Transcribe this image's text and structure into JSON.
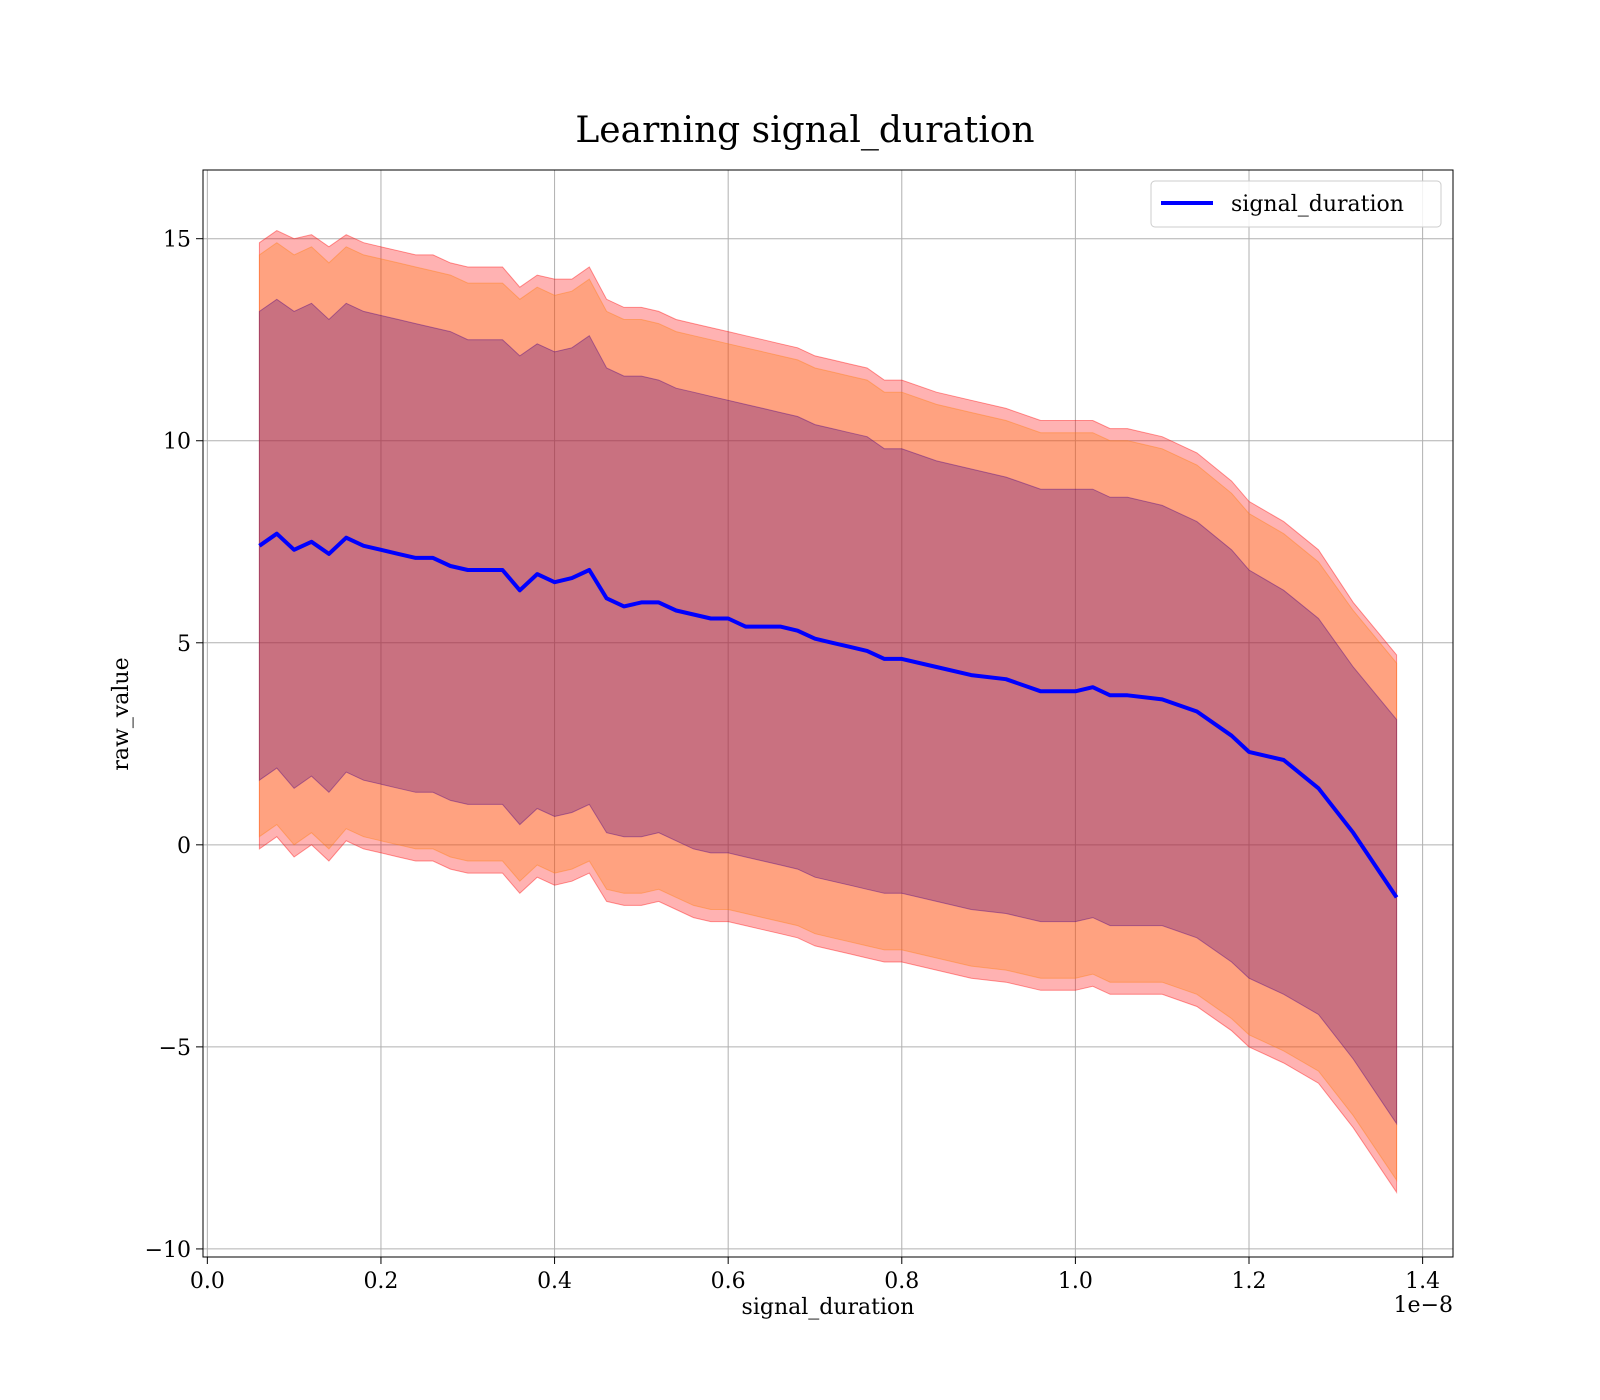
{
  "chart_data": {
    "type": "line",
    "title": "Learning signal_duration",
    "xlabel": "signal_duration",
    "ylabel": "raw_value",
    "x_offset_text": "1e−8",
    "xlim": [
      -0.005,
      1.435
    ],
    "ylim": [
      -10.2,
      16.7
    ],
    "xticks": [
      0.0,
      0.2,
      0.4,
      0.6,
      0.8,
      1.0,
      1.2,
      1.4
    ],
    "xtick_labels": [
      "0.0",
      "0.2",
      "0.4",
      "0.6",
      "0.8",
      "1.0",
      "1.2",
      "1.4"
    ],
    "yticks": [
      -10,
      -5,
      0,
      5,
      10,
      15
    ],
    "ytick_labels": [
      "−10",
      "−5",
      "0",
      "5",
      "10",
      "15"
    ],
    "grid": true,
    "legend": {
      "position": "top-right",
      "entries": [
        "signal_duration"
      ]
    },
    "colors": {
      "line": "#0000ff",
      "band_outer": "#ff0000",
      "band_middle": "#ff7f0e",
      "band_inner": "#4b0082"
    },
    "x": [
      0.06,
      0.08,
      0.1,
      0.12,
      0.14,
      0.16,
      0.18,
      0.2,
      0.22,
      0.24,
      0.26,
      0.28,
      0.3,
      0.32,
      0.34,
      0.36,
      0.38,
      0.4,
      0.42,
      0.44,
      0.46,
      0.48,
      0.5,
      0.52,
      0.54,
      0.56,
      0.58,
      0.6,
      0.62,
      0.64,
      0.66,
      0.68,
      0.7,
      0.72,
      0.74,
      0.76,
      0.78,
      0.8,
      0.84,
      0.88,
      0.92,
      0.96,
      1.0,
      1.02,
      1.04,
      1.06,
      1.1,
      1.14,
      1.18,
      1.2,
      1.24,
      1.28,
      1.32,
      1.37
    ],
    "series": [
      {
        "name": "signal_duration",
        "values": [
          7.4,
          7.7,
          7.3,
          7.5,
          7.2,
          7.6,
          7.4,
          7.3,
          7.2,
          7.1,
          7.1,
          6.9,
          6.8,
          6.8,
          6.8,
          6.3,
          6.7,
          6.5,
          6.6,
          6.8,
          6.1,
          5.9,
          6.0,
          6.0,
          5.8,
          5.7,
          5.6,
          5.6,
          5.4,
          5.4,
          5.4,
          5.3,
          5.1,
          5.0,
          4.9,
          4.8,
          4.6,
          4.6,
          4.4,
          4.2,
          4.1,
          3.8,
          3.8,
          3.9,
          3.7,
          3.7,
          3.6,
          3.3,
          2.7,
          2.3,
          2.1,
          1.4,
          0.3,
          -1.3
        ],
        "band_outer_upper": [
          14.9,
          15.2,
          15.0,
          15.1,
          14.8,
          15.1,
          14.9,
          14.8,
          14.7,
          14.6,
          14.6,
          14.4,
          14.3,
          14.3,
          14.3,
          13.8,
          14.1,
          14.0,
          14.0,
          14.3,
          13.5,
          13.3,
          13.3,
          13.2,
          13.0,
          12.9,
          12.8,
          12.7,
          12.6,
          12.5,
          12.4,
          12.3,
          12.1,
          12.0,
          11.9,
          11.8,
          11.5,
          11.5,
          11.2,
          11.0,
          10.8,
          10.5,
          10.5,
          10.5,
          10.3,
          10.3,
          10.1,
          9.7,
          9.0,
          8.5,
          8.0,
          7.3,
          6.0,
          4.7
        ],
        "band_outer_lower": [
          -0.1,
          0.2,
          -0.3,
          0.0,
          -0.4,
          0.1,
          -0.1,
          -0.2,
          -0.3,
          -0.4,
          -0.4,
          -0.6,
          -0.7,
          -0.7,
          -0.7,
          -1.2,
          -0.8,
          -1.0,
          -0.9,
          -0.7,
          -1.4,
          -1.5,
          -1.5,
          -1.4,
          -1.6,
          -1.8,
          -1.9,
          -1.9,
          -2.0,
          -2.1,
          -2.2,
          -2.3,
          -2.5,
          -2.6,
          -2.7,
          -2.8,
          -2.9,
          -2.9,
          -3.1,
          -3.3,
          -3.4,
          -3.6,
          -3.6,
          -3.5,
          -3.7,
          -3.7,
          -3.7,
          -4.0,
          -4.6,
          -5.0,
          -5.4,
          -5.9,
          -7.0,
          -8.6
        ],
        "band_middle_upper": [
          14.6,
          14.9,
          14.6,
          14.8,
          14.4,
          14.8,
          14.6,
          14.5,
          14.4,
          14.3,
          14.2,
          14.1,
          13.9,
          13.9,
          13.9,
          13.5,
          13.8,
          13.6,
          13.7,
          14.0,
          13.2,
          13.0,
          13.0,
          12.9,
          12.7,
          12.6,
          12.5,
          12.4,
          12.3,
          12.2,
          12.1,
          12.0,
          11.8,
          11.7,
          11.6,
          11.5,
          11.2,
          11.2,
          10.9,
          10.7,
          10.5,
          10.2,
          10.2,
          10.2,
          10.0,
          10.0,
          9.8,
          9.4,
          8.7,
          8.2,
          7.7,
          7.0,
          5.8,
          4.5
        ],
        "band_middle_lower": [
          0.2,
          0.5,
          0.0,
          0.3,
          -0.1,
          0.4,
          0.2,
          0.1,
          0.0,
          -0.1,
          -0.1,
          -0.3,
          -0.4,
          -0.4,
          -0.4,
          -0.9,
          -0.5,
          -0.7,
          -0.6,
          -0.4,
          -1.1,
          -1.2,
          -1.2,
          -1.1,
          -1.3,
          -1.5,
          -1.6,
          -1.6,
          -1.7,
          -1.8,
          -1.9,
          -2.0,
          -2.2,
          -2.3,
          -2.4,
          -2.5,
          -2.6,
          -2.6,
          -2.8,
          -3.0,
          -3.1,
          -3.3,
          -3.3,
          -3.2,
          -3.4,
          -3.4,
          -3.4,
          -3.7,
          -4.3,
          -4.7,
          -5.1,
          -5.6,
          -6.7,
          -8.3
        ],
        "band_inner_upper": [
          13.2,
          13.5,
          13.2,
          13.4,
          13.0,
          13.4,
          13.2,
          13.1,
          13.0,
          12.9,
          12.8,
          12.7,
          12.5,
          12.5,
          12.5,
          12.1,
          12.4,
          12.2,
          12.3,
          12.6,
          11.8,
          11.6,
          11.6,
          11.5,
          11.3,
          11.2,
          11.1,
          11.0,
          10.9,
          10.8,
          10.7,
          10.6,
          10.4,
          10.3,
          10.2,
          10.1,
          9.8,
          9.8,
          9.5,
          9.3,
          9.1,
          8.8,
          8.8,
          8.8,
          8.6,
          8.6,
          8.4,
          8.0,
          7.3,
          6.8,
          6.3,
          5.6,
          4.4,
          3.1
        ],
        "band_inner_lower": [
          1.6,
          1.9,
          1.4,
          1.7,
          1.3,
          1.8,
          1.6,
          1.5,
          1.4,
          1.3,
          1.3,
          1.1,
          1.0,
          1.0,
          1.0,
          0.5,
          0.9,
          0.7,
          0.8,
          1.0,
          0.3,
          0.2,
          0.2,
          0.3,
          0.1,
          -0.1,
          -0.2,
          -0.2,
          -0.3,
          -0.4,
          -0.5,
          -0.6,
          -0.8,
          -0.9,
          -1.0,
          -1.1,
          -1.2,
          -1.2,
          -1.4,
          -1.6,
          -1.7,
          -1.9,
          -1.9,
          -1.8,
          -2.0,
          -2.0,
          -2.0,
          -2.3,
          -2.9,
          -3.3,
          -3.7,
          -4.2,
          -5.3,
          -6.9
        ]
      }
    ]
  }
}
